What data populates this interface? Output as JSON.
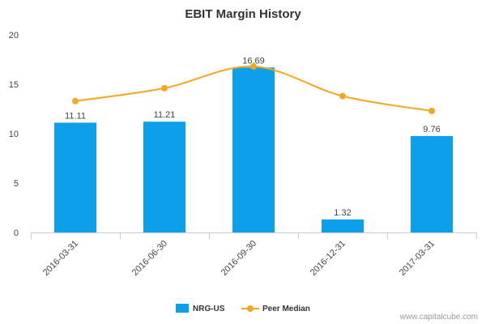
{
  "chart_data": {
    "type": "bar",
    "title": "EBIT Margin History",
    "xlabel": "",
    "ylabel": "",
    "ylim": [
      0,
      20
    ],
    "yticks": [
      0,
      5,
      10,
      15,
      20
    ],
    "grid": false,
    "legend_position": "bottom",
    "categories": [
      "2016-03-31",
      "2016-06-30",
      "2016-09-30",
      "2016-12-31",
      "2017-03-31"
    ],
    "series": [
      {
        "name": "NRG-US",
        "kind": "bar",
        "color": "#0ca0ea",
        "values": [
          11.11,
          11.21,
          16.69,
          1.32,
          9.76
        ],
        "labels": [
          "11.11",
          "11.21",
          "16.69",
          "1.32",
          "9.76"
        ]
      },
      {
        "name": "Peer Median",
        "kind": "line",
        "color": "#f5a623",
        "values": [
          13.3,
          14.6,
          16.8,
          13.8,
          12.3
        ]
      }
    ]
  },
  "footer": {
    "source": "www.capitalcube.com"
  }
}
